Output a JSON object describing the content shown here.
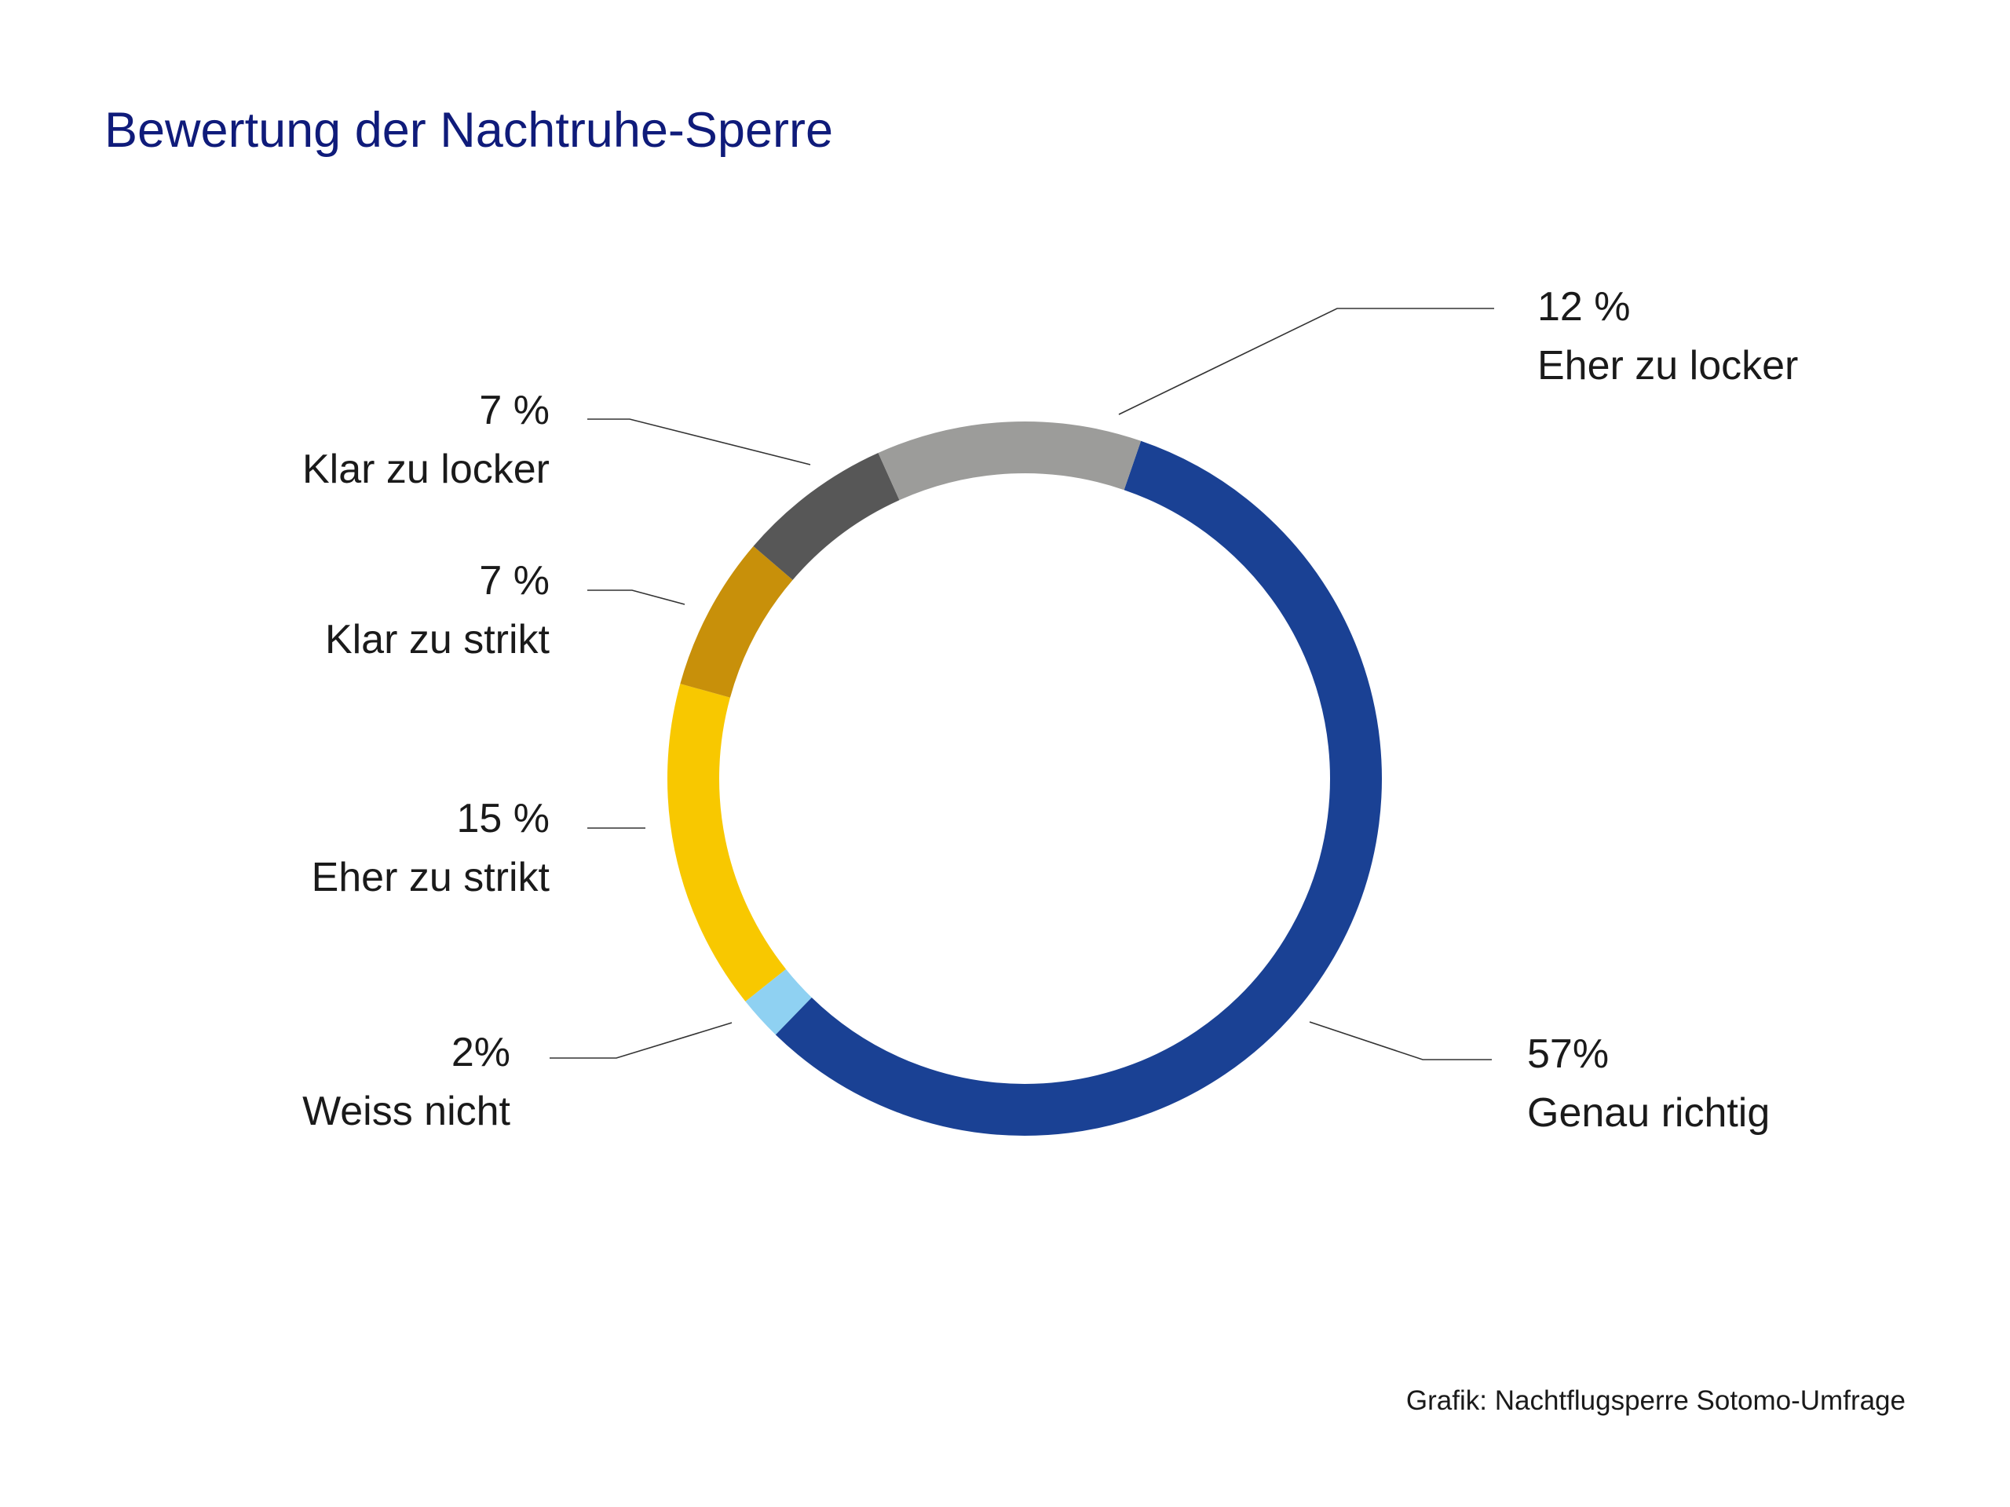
{
  "chart_data": {
    "type": "pie",
    "title": "Bewertung der Nachtruhe-Sperre",
    "source": "Grafik: Nachtflugsperre Sotomo-Umfrage",
    "slices": [
      {
        "label": "Genau richtig",
        "value": 57,
        "value_label": "57%",
        "color": "#1a4194"
      },
      {
        "label": "Weiss nicht",
        "value": 2,
        "value_label": "2%",
        "color": "#8fd1f2"
      },
      {
        "label": "Eher zu strikt",
        "value": 15,
        "value_label": "15 %",
        "color": "#f8c800"
      },
      {
        "label": "Klar zu strikt",
        "value": 7,
        "value_label": "7 %",
        "color": "#c8900a"
      },
      {
        "label": "Klar zu locker",
        "value": 7,
        "value_label": "7 %",
        "color": "#575757"
      },
      {
        "label": "Eher zu locker",
        "value": 12,
        "value_label": "12 %",
        "color": "#9c9c9a"
      }
    ]
  }
}
